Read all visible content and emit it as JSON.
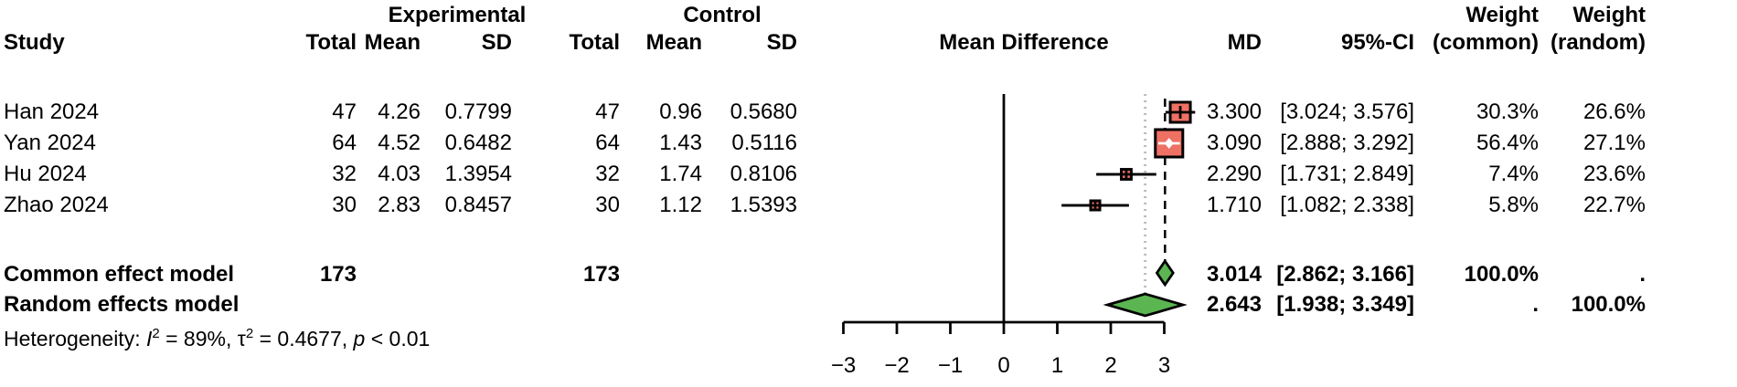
{
  "header": {
    "group_experimental": "Experimental",
    "group_control": "Control",
    "weight_line1_common": "Weight",
    "weight_line1_random": "Weight",
    "col_study": "Study",
    "col_exp_total": "Total",
    "col_exp_mean": "Mean",
    "col_exp_sd": "SD",
    "col_ctl_total": "Total",
    "col_ctl_mean": "Mean",
    "col_ctl_sd": "SD",
    "col_plot": "Mean Difference",
    "col_md": "MD",
    "col_ci": "95%-CI",
    "col_w_common": "(common)",
    "col_w_random": "(random)"
  },
  "rows": [
    {
      "study": "Han 2024",
      "exp_total": "47",
      "exp_mean": "4.26",
      "exp_sd": "0.7799",
      "ctl_total": "47",
      "ctl_mean": "0.96",
      "ctl_sd": "0.5680",
      "md": "3.300",
      "ci": "[3.024; 3.576]",
      "w_common": "30.3%",
      "w_random": "26.6%"
    },
    {
      "study": "Yan 2024",
      "exp_total": "64",
      "exp_mean": "4.52",
      "exp_sd": "0.6482",
      "ctl_total": "64",
      "ctl_mean": "1.43",
      "ctl_sd": "0.5116",
      "md": "3.090",
      "ci": "[2.888; 3.292]",
      "w_common": "56.4%",
      "w_random": "27.1%"
    },
    {
      "study": "Hu 2024",
      "exp_total": "32",
      "exp_mean": "4.03",
      "exp_sd": "1.3954",
      "ctl_total": "32",
      "ctl_mean": "1.74",
      "ctl_sd": "0.8106",
      "md": "2.290",
      "ci": "[1.731; 2.849]",
      "w_common": "7.4%",
      "w_random": "23.6%"
    },
    {
      "study": "Zhao 2024",
      "exp_total": "30",
      "exp_mean": "2.83",
      "exp_sd": "0.8457",
      "ctl_total": "30",
      "ctl_mean": "1.12",
      "ctl_sd": "1.5393",
      "md": "1.710",
      "ci": "[1.082; 2.338]",
      "w_common": "5.8%",
      "w_random": "22.7%"
    }
  ],
  "summary_rows": [
    {
      "label": "Common effect model",
      "exp_total": "173",
      "ctl_total": "173",
      "md": "3.014",
      "ci": "[2.862; 3.166]",
      "w_common": "100.0%",
      "w_random": "."
    },
    {
      "label": "Random effects model",
      "exp_total": "",
      "ctl_total": "",
      "md": "2.643",
      "ci": "[1.938; 3.349]",
      "w_common": ".",
      "w_random": "100.0%"
    }
  ],
  "heterogeneity": {
    "segments": [
      {
        "text": "Heterogeneity: ",
        "style": "plain"
      },
      {
        "text": "I",
        "style": "italic"
      },
      {
        "text": "2",
        "style": "sup"
      },
      {
        "text": " = 89%, ",
        "style": "plain"
      },
      {
        "text": "τ",
        "style": "plain"
      },
      {
        "text": "2",
        "style": "sup"
      },
      {
        "text": " = 0.4677, ",
        "style": "plain"
      },
      {
        "text": "p",
        "style": "italic"
      },
      {
        "text": " < 0.01",
        "style": "plain"
      }
    ]
  },
  "colors": {
    "square_fill": "#EE7163",
    "square_border": "#000000",
    "diamond_fill": "#5BB551",
    "diamond_border": "#000000",
    "dotted_line": "#BBBBBB",
    "dashed_line": "#000000",
    "axis": "#000000",
    "background": "#FFFFFF"
  },
  "chart_data": {
    "type": "forest",
    "variant": "meta-analysis forest plot (mean difference)",
    "title": "",
    "xlabel": "",
    "effect_measure": "Mean Difference",
    "x_axis": {
      "min": -3,
      "max": 3,
      "ticks": [
        -3,
        -2,
        -1,
        0,
        1,
        2,
        3
      ],
      "tick_labels": [
        "−3",
        "−2",
        "−1",
        "0",
        "1",
        "2",
        "3"
      ]
    },
    "reference_line": 0,
    "dashed_line_at": 3.014,
    "dotted_line_at": 2.643,
    "studies": [
      {
        "name": "Han 2024",
        "n_exp": 47,
        "mean_exp": 4.26,
        "sd_exp": 0.7799,
        "n_ctl": 47,
        "mean_ctl": 0.96,
        "sd_ctl": 0.568,
        "estimate": 3.3,
        "ci_lower": 3.024,
        "ci_upper": 3.576,
        "weight_common_pct": 30.3,
        "weight_random_pct": 26.6
      },
      {
        "name": "Yan 2024",
        "n_exp": 64,
        "mean_exp": 4.52,
        "sd_exp": 0.6482,
        "n_ctl": 64,
        "mean_ctl": 1.43,
        "sd_ctl": 0.5116,
        "estimate": 3.09,
        "ci_lower": 2.888,
        "ci_upper": 3.292,
        "weight_common_pct": 56.4,
        "weight_random_pct": 27.1
      },
      {
        "name": "Hu 2024",
        "n_exp": 32,
        "mean_exp": 4.03,
        "sd_exp": 1.3954,
        "n_ctl": 32,
        "mean_ctl": 1.74,
        "sd_ctl": 0.8106,
        "estimate": 2.29,
        "ci_lower": 1.731,
        "ci_upper": 2.849,
        "weight_common_pct": 7.4,
        "weight_random_pct": 23.6
      },
      {
        "name": "Zhao 2024",
        "n_exp": 30,
        "mean_exp": 2.83,
        "sd_exp": 0.8457,
        "n_ctl": 30,
        "mean_ctl": 1.12,
        "sd_ctl": 1.5393,
        "estimate": 1.71,
        "ci_lower": 1.082,
        "ci_upper": 2.338,
        "weight_common_pct": 5.8,
        "weight_random_pct": 22.7
      }
    ],
    "pooled": [
      {
        "name": "Common effect model",
        "n_exp_total": 173,
        "n_ctl_total": 173,
        "estimate": 3.014,
        "ci_lower": 2.862,
        "ci_upper": 3.166,
        "weight_common_pct": 100.0,
        "weight_random_pct": null
      },
      {
        "name": "Random effects model",
        "estimate": 2.643,
        "ci_lower": 1.938,
        "ci_upper": 3.349,
        "weight_common_pct": null,
        "weight_random_pct": 100.0
      }
    ],
    "heterogeneity_text": "Heterogeneity: I2 = 89%, τ2 = 0.4677, p < 0.01",
    "legend_position": "none",
    "grid": false
  }
}
